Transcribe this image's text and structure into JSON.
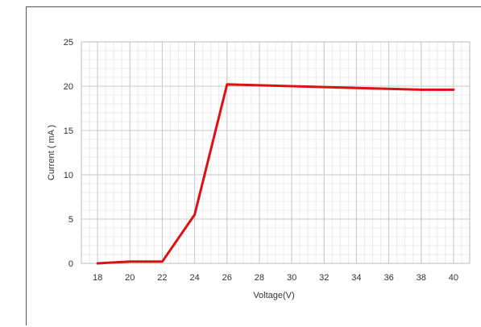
{
  "chart_data": {
    "type": "line",
    "title": "",
    "xlabel": "Voltage(V)",
    "ylabel": "Current ( mA )",
    "xlim": [
      17,
      41
    ],
    "ylim": [
      0,
      25
    ],
    "x_ticks": [
      18,
      20,
      22,
      24,
      26,
      28,
      30,
      32,
      34,
      36,
      38,
      40
    ],
    "y_ticks": [
      0,
      5,
      10,
      15,
      20,
      25
    ],
    "grid": true,
    "legend": "none",
    "series": [
      {
        "color": "#dd1111",
        "x": [
          18,
          20,
          22,
          24,
          26,
          30,
          34,
          38,
          40
        ],
        "y": [
          0,
          0.2,
          0.2,
          5.5,
          20.2,
          20.0,
          19.8,
          19.6,
          19.6
        ]
      }
    ]
  }
}
